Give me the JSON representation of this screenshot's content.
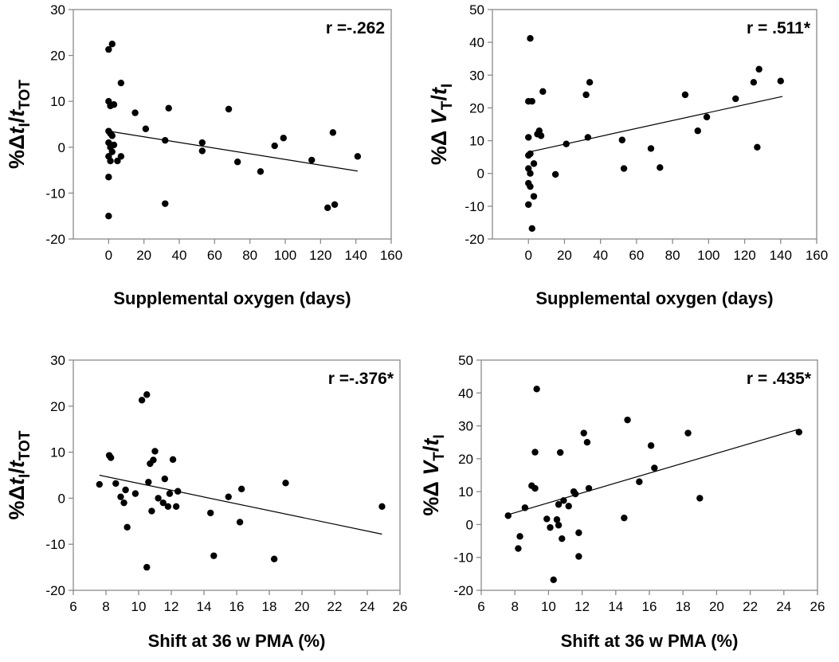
{
  "chart_data": [
    {
      "type": "scatter",
      "panel": "top-left",
      "annotation": "r =-.262",
      "ylabel_parts": [
        {
          "t": "%Δ",
          "it": false,
          "sub": false
        },
        {
          "t": "t",
          "it": true,
          "sub": false
        },
        {
          "t": "I",
          "it": false,
          "sub": true
        },
        {
          "t": "/",
          "it": false,
          "sub": false
        },
        {
          "t": "t",
          "it": true,
          "sub": false
        },
        {
          "t": "TOT",
          "it": false,
          "sub": true
        }
      ],
      "xlabel": "Supplemental oxygen (days)",
      "xlim": [
        -20,
        160
      ],
      "ylim": [
        -20,
        30
      ],
      "xticks": [
        "0",
        "20",
        "40",
        "60",
        "80",
        "100",
        "120",
        "140",
        "160"
      ],
      "xtick_values": [
        0,
        20,
        40,
        60,
        80,
        100,
        120,
        140,
        160
      ],
      "yticks": [
        "-20",
        "-10",
        "0",
        "10",
        "20",
        "30"
      ],
      "ytick_values": [
        -20,
        -10,
        0,
        10,
        20,
        30
      ],
      "fit": [
        [
          0,
          3.5
        ],
        [
          141,
          -5.2
        ]
      ],
      "points": [
        [
          0,
          21.3
        ],
        [
          2,
          22.5
        ],
        [
          0,
          10
        ],
        [
          1,
          9
        ],
        [
          3,
          9.3
        ],
        [
          0,
          3.5
        ],
        [
          1,
          3
        ],
        [
          2,
          2.5
        ],
        [
          0,
          1
        ],
        [
          1,
          0
        ],
        [
          2,
          -1
        ],
        [
          0,
          -2
        ],
        [
          1,
          -3
        ],
        [
          0,
          -6.5
        ],
        [
          0,
          -15
        ],
        [
          3,
          0.5
        ],
        [
          5,
          -3
        ],
        [
          7,
          14
        ],
        [
          7,
          -2
        ],
        [
          15,
          7.5
        ],
        [
          21,
          4
        ],
        [
          32,
          1.5
        ],
        [
          32,
          -12.3
        ],
        [
          34,
          8.5
        ],
        [
          53,
          1
        ],
        [
          53,
          -0.8
        ],
        [
          68,
          8.3
        ],
        [
          73,
          -3.2
        ],
        [
          86,
          -5.3
        ],
        [
          94,
          0.3
        ],
        [
          99,
          2
        ],
        [
          115,
          -2.8
        ],
        [
          124,
          -13.2
        ],
        [
          127,
          3.2
        ],
        [
          128,
          -12.5
        ],
        [
          141,
          -2
        ]
      ]
    },
    {
      "type": "scatter",
      "panel": "top-right",
      "annotation": "r = .511*",
      "ylabel_parts": [
        {
          "t": "%Δ ",
          "it": false,
          "sub": false
        },
        {
          "t": "V",
          "it": true,
          "sub": false
        },
        {
          "t": "T",
          "it": false,
          "sub": true
        },
        {
          "t": "/",
          "it": false,
          "sub": false
        },
        {
          "t": "t",
          "it": true,
          "sub": false
        },
        {
          "t": "I",
          "it": false,
          "sub": true
        }
      ],
      "xlabel": "Supplemental oxygen (days)",
      "xlim": [
        -20,
        160
      ],
      "ylim": [
        -20,
        50
      ],
      "xticks": [
        "0",
        "20",
        "40",
        "60",
        "80",
        "100",
        "120",
        "140",
        "160"
      ],
      "xtick_values": [
        0,
        20,
        40,
        60,
        80,
        100,
        120,
        140,
        160
      ],
      "yticks": [
        "-20",
        "-10",
        "0",
        "10",
        "20",
        "30",
        "40",
        "50"
      ],
      "ytick_values": [
        -20,
        -10,
        0,
        10,
        20,
        30,
        40,
        50
      ],
      "fit": [
        [
          0,
          6.5
        ],
        [
          141,
          23.5
        ]
      ],
      "points": [
        [
          1,
          41.2
        ],
        [
          0,
          22
        ],
        [
          2,
          22
        ],
        [
          0,
          11
        ],
        [
          1,
          6
        ],
        [
          0,
          5.5
        ],
        [
          3,
          3
        ],
        [
          0,
          1.5
        ],
        [
          1,
          0
        ],
        [
          0,
          -3
        ],
        [
          1,
          -4
        ],
        [
          0,
          -9.5
        ],
        [
          2,
          -16.8
        ],
        [
          3,
          -7
        ],
        [
          5,
          12
        ],
        [
          6,
          13
        ],
        [
          7,
          11.5
        ],
        [
          8,
          25
        ],
        [
          15,
          -0.3
        ],
        [
          21,
          9
        ],
        [
          32,
          24
        ],
        [
          33,
          11
        ],
        [
          34,
          27.8
        ],
        [
          52,
          10.2
        ],
        [
          53,
          1.5
        ],
        [
          68,
          7.6
        ],
        [
          73,
          1.8
        ],
        [
          87,
          24
        ],
        [
          94,
          13
        ],
        [
          99,
          17.2
        ],
        [
          115,
          22.8
        ],
        [
          125,
          27.8
        ],
        [
          127,
          8
        ],
        [
          128,
          31.8
        ],
        [
          140,
          28.2
        ]
      ]
    },
    {
      "type": "scatter",
      "panel": "bottom-left",
      "annotation": "r =-.376*",
      "ylabel_parts": [
        {
          "t": "%Δ",
          "it": false,
          "sub": false
        },
        {
          "t": "t",
          "it": true,
          "sub": false
        },
        {
          "t": "I",
          "it": false,
          "sub": true
        },
        {
          "t": "/",
          "it": false,
          "sub": false
        },
        {
          "t": "t",
          "it": true,
          "sub": false
        },
        {
          "t": "TOT",
          "it": false,
          "sub": true
        }
      ],
      "xlabel": "Shift at 36 w PMA (%)",
      "xlim": [
        6,
        26
      ],
      "ylim": [
        -20,
        30
      ],
      "xticks": [
        "6",
        "8",
        "10",
        "12",
        "14",
        "16",
        "18",
        "20",
        "22",
        "24",
        "26"
      ],
      "xtick_values": [
        6,
        8,
        10,
        12,
        14,
        16,
        18,
        20,
        22,
        24,
        26
      ],
      "yticks": [
        "-20",
        "-10",
        "0",
        "10",
        "20",
        "30"
      ],
      "ytick_values": [
        -20,
        -10,
        0,
        10,
        20,
        30
      ],
      "fit": [
        [
          7.6,
          5.0
        ],
        [
          24.9,
          -7.8
        ]
      ],
      "points": [
        [
          7.6,
          3
        ],
        [
          8.2,
          9.3
        ],
        [
          8.3,
          8.8
        ],
        [
          8.6,
          3.2
        ],
        [
          8.9,
          0.3
        ],
        [
          9.1,
          -1
        ],
        [
          9.2,
          1.8
        ],
        [
          9.3,
          -6.3
        ],
        [
          9.8,
          1
        ],
        [
          10.2,
          21.3
        ],
        [
          10.5,
          22.5
        ],
        [
          10.5,
          -15
        ],
        [
          10.6,
          3.5
        ],
        [
          10.7,
          7.5
        ],
        [
          10.8,
          -2.8
        ],
        [
          10.9,
          8.3
        ],
        [
          11.0,
          10.2
        ],
        [
          11.2,
          0
        ],
        [
          11.5,
          -1
        ],
        [
          11.6,
          4.2
        ],
        [
          11.8,
          -1.8
        ],
        [
          11.9,
          1
        ],
        [
          12.1,
          8.4
        ],
        [
          12.3,
          -1.8
        ],
        [
          12.4,
          1.5
        ],
        [
          14.4,
          -3.2
        ],
        [
          14.6,
          -12.5
        ],
        [
          15.5,
          0.3
        ],
        [
          16.3,
          2
        ],
        [
          16.2,
          -5.2
        ],
        [
          18.3,
          -13.2
        ],
        [
          19.0,
          3.3
        ],
        [
          24.9,
          -1.8
        ]
      ]
    },
    {
      "type": "scatter",
      "panel": "bottom-right",
      "annotation": "r = .435*",
      "ylabel_parts": [
        {
          "t": "%Δ ",
          "it": false,
          "sub": false
        },
        {
          "t": "V",
          "it": true,
          "sub": false
        },
        {
          "t": "T",
          "it": false,
          "sub": true
        },
        {
          "t": "/",
          "it": false,
          "sub": false
        },
        {
          "t": "t",
          "it": true,
          "sub": false
        },
        {
          "t": "I",
          "it": false,
          "sub": true
        }
      ],
      "xlabel": "Shift at 36 w PMA (%)",
      "xlim": [
        6,
        26
      ],
      "ylim": [
        -20,
        50
      ],
      "xticks": [
        "6",
        "8",
        "10",
        "12",
        "14",
        "16",
        "18",
        "20",
        "22",
        "24",
        "26"
      ],
      "xtick_values": [
        6,
        8,
        10,
        12,
        14,
        16,
        18,
        20,
        22,
        24,
        26
      ],
      "yticks": [
        "-20",
        "-10",
        "0",
        "10",
        "20",
        "30",
        "40",
        "50"
      ],
      "ytick_values": [
        -20,
        -10,
        0,
        10,
        20,
        30,
        40,
        50
      ],
      "fit": [
        [
          7.6,
          3.0
        ],
        [
          24.9,
          29.0
        ]
      ],
      "points": [
        [
          7.6,
          2.7
        ],
        [
          8.2,
          -7.3
        ],
        [
          8.3,
          -3.6
        ],
        [
          8.6,
          5.1
        ],
        [
          9.0,
          11.8
        ],
        [
          9.2,
          22
        ],
        [
          9.2,
          11
        ],
        [
          9.3,
          41.2
        ],
        [
          9.9,
          1.7
        ],
        [
          10.1,
          -0.9
        ],
        [
          10.3,
          -16.8
        ],
        [
          10.5,
          1.5
        ],
        [
          10.6,
          -0.2
        ],
        [
          10.6,
          6.1
        ],
        [
          10.7,
          21.9
        ],
        [
          10.8,
          -4.3
        ],
        [
          10.9,
          7.3
        ],
        [
          11.2,
          5.6
        ],
        [
          11.5,
          10
        ],
        [
          11.6,
          9.3
        ],
        [
          11.8,
          -2.5
        ],
        [
          11.8,
          -9.7
        ],
        [
          12.1,
          27.8
        ],
        [
          12.3,
          25
        ],
        [
          12.4,
          11
        ],
        [
          14.5,
          2
        ],
        [
          14.7,
          31.8
        ],
        [
          15.4,
          13
        ],
        [
          16.1,
          24
        ],
        [
          16.3,
          17.2
        ],
        [
          18.3,
          27.8
        ],
        [
          19.0,
          8
        ],
        [
          24.9,
          28.1
        ]
      ]
    }
  ]
}
